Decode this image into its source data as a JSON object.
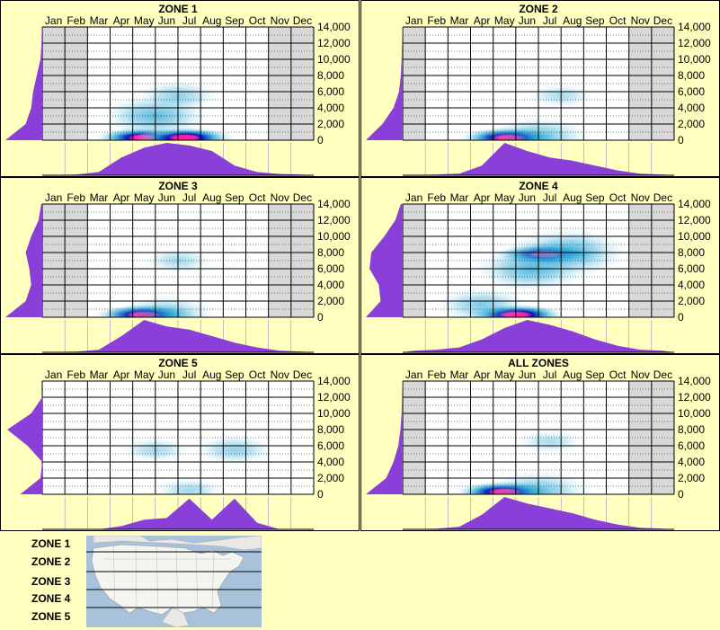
{
  "months": [
    "Jan",
    "Feb",
    "Mar",
    "Apr",
    "May",
    "Jun",
    "Jul",
    "Aug",
    "Sep",
    "Oct",
    "Nov",
    "Dec"
  ],
  "yticks": [
    "14,000",
    "12,000",
    "10,000",
    "8,000",
    "6,000",
    "4,000",
    "2,000",
    "0"
  ],
  "colors": {
    "background": "#ffffc0",
    "grid_bg": "#ffffff",
    "shade": "#d8d8d8",
    "marginal": "#8a3fd8",
    "density_low": "#cdeff8",
    "density_mid": "#2aa8d8",
    "density_high": "#0018c0",
    "density_peak": "#ff1ea0"
  },
  "chart_data": [
    {
      "type": "heatmap",
      "title": "ZONE 1",
      "x_categories": [
        "Jan",
        "Feb",
        "Mar",
        "Apr",
        "May",
        "Jun",
        "Jul",
        "Aug",
        "Sep",
        "Oct",
        "Nov",
        "Dec"
      ],
      "ylim": [
        0,
        14000
      ],
      "shaded_months": [
        "Jan",
        "Feb",
        "Nov",
        "Dec"
      ],
      "hotspots": [
        {
          "month": 5.0,
          "elevation": 300,
          "intensity": 1.0
        },
        {
          "month": 6.8,
          "elevation": 300,
          "intensity": 0.95
        },
        {
          "month": 5.5,
          "elevation": 3000,
          "intensity": 0.5
        },
        {
          "month": 6.5,
          "elevation": 5500,
          "intensity": 0.25
        }
      ],
      "month_marginal": [
        0.01,
        0.02,
        0.1,
        0.55,
        0.85,
        1.0,
        0.92,
        0.75,
        0.3,
        0.1,
        0.04,
        0.02
      ],
      "elevation_marginal": [
        1.0,
        0.45,
        0.3,
        0.25,
        0.15,
        0.05,
        0.02,
        0.01
      ]
    },
    {
      "type": "heatmap",
      "title": "ZONE 2",
      "x_categories": [
        "Jan",
        "Feb",
        "Mar",
        "Apr",
        "May",
        "Jun",
        "Jul",
        "Aug",
        "Sep",
        "Oct",
        "Nov",
        "Dec"
      ],
      "ylim": [
        0,
        14000
      ],
      "shaded_months": [
        "Jan",
        "Nov",
        "Dec"
      ],
      "hotspots": [
        {
          "month": 5.2,
          "elevation": 300,
          "intensity": 1.0
        },
        {
          "month": 6.5,
          "elevation": 400,
          "intensity": 0.45
        },
        {
          "month": 7.5,
          "elevation": 5500,
          "intensity": 0.12
        }
      ],
      "month_marginal": [
        0.01,
        0.02,
        0.05,
        0.3,
        1.0,
        0.75,
        0.55,
        0.45,
        0.3,
        0.15,
        0.05,
        0.02
      ],
      "elevation_marginal": [
        1.0,
        0.55,
        0.25,
        0.1,
        0.05,
        0.03,
        0.02,
        0.01
      ]
    },
    {
      "type": "heatmap",
      "title": "ZONE 3",
      "x_categories": [
        "Jan",
        "Feb",
        "Mar",
        "Apr",
        "May",
        "Jun",
        "Jul",
        "Aug",
        "Sep",
        "Oct",
        "Nov",
        "Dec"
      ],
      "ylim": [
        0,
        14000
      ],
      "shaded_months": [
        "Jan",
        "Feb",
        "Nov",
        "Dec"
      ],
      "hotspots": [
        {
          "month": 5.0,
          "elevation": 300,
          "intensity": 1.0
        },
        {
          "month": 6.0,
          "elevation": 400,
          "intensity": 0.4
        },
        {
          "month": 6.5,
          "elevation": 7000,
          "intensity": 0.15
        }
      ],
      "month_marginal": [
        0.01,
        0.02,
        0.08,
        0.5,
        1.0,
        0.8,
        0.7,
        0.5,
        0.3,
        0.15,
        0.05,
        0.02
      ],
      "elevation_marginal": [
        1.0,
        0.45,
        0.3,
        0.35,
        0.45,
        0.3,
        0.1,
        0.03
      ]
    },
    {
      "type": "heatmap",
      "title": "ZONE 4",
      "x_categories": [
        "Jan",
        "Feb",
        "Mar",
        "Apr",
        "May",
        "Jun",
        "Jul",
        "Aug",
        "Sep",
        "Oct",
        "Nov",
        "Dec"
      ],
      "ylim": [
        0,
        14000
      ],
      "shaded_months": [
        "Jan",
        "Nov",
        "Dec"
      ],
      "hotspots": [
        {
          "month": 5.5,
          "elevation": 300,
          "intensity": 1.0
        },
        {
          "month": 6.8,
          "elevation": 7800,
          "intensity": 1.0
        },
        {
          "month": 7.8,
          "elevation": 8000,
          "intensity": 0.6
        },
        {
          "month": 6.2,
          "elevation": 6000,
          "intensity": 0.55
        },
        {
          "month": 4.0,
          "elevation": 1500,
          "intensity": 0.35
        }
      ],
      "month_marginal": [
        0.05,
        0.08,
        0.15,
        0.4,
        0.75,
        1.0,
        0.85,
        0.65,
        0.4,
        0.2,
        0.08,
        0.05
      ],
      "elevation_marginal": [
        1.0,
        0.6,
        0.65,
        0.9,
        0.85,
        0.5,
        0.2,
        0.05
      ]
    },
    {
      "type": "heatmap",
      "title": "ZONE 5",
      "x_categories": [
        "Jan",
        "Feb",
        "Mar",
        "Apr",
        "May",
        "Jun",
        "Jul",
        "Aug",
        "Sep",
        "Oct",
        "Nov",
        "Dec"
      ],
      "ylim": [
        0,
        14000
      ],
      "shaded_months": [],
      "hotspots": [
        {
          "month": 5.5,
          "elevation": 5500,
          "intensity": 0.15
        },
        {
          "month": 9.0,
          "elevation": 5500,
          "intensity": 0.25
        },
        {
          "month": 7.0,
          "elevation": 500,
          "intensity": 0.15
        }
      ],
      "month_marginal": [
        0.0,
        0.0,
        0.0,
        0.1,
        0.3,
        0.35,
        0.95,
        0.3,
        0.95,
        0.2,
        0.0,
        0.0
      ],
      "elevation_marginal": [
        0.6,
        0.05,
        0.0,
        0.4,
        0.95,
        0.3,
        0.0,
        0.0
      ]
    },
    {
      "type": "heatmap",
      "title": "ALL ZONES",
      "x_categories": [
        "Jan",
        "Feb",
        "Mar",
        "Apr",
        "May",
        "Jun",
        "Jul",
        "Aug",
        "Sep",
        "Oct",
        "Nov",
        "Dec"
      ],
      "ylim": [
        0,
        14000
      ],
      "shaded_months": [
        "Jan",
        "Nov",
        "Dec"
      ],
      "hotspots": [
        {
          "month": 5.0,
          "elevation": 300,
          "intensity": 1.0
        },
        {
          "month": 6.5,
          "elevation": 400,
          "intensity": 0.45
        },
        {
          "month": 7.0,
          "elevation": 6500,
          "intensity": 0.12
        }
      ],
      "month_marginal": [
        0.01,
        0.02,
        0.08,
        0.45,
        1.0,
        0.8,
        0.65,
        0.5,
        0.3,
        0.15,
        0.05,
        0.02
      ],
      "elevation_marginal": [
        1.0,
        0.45,
        0.25,
        0.12,
        0.06,
        0.03,
        0.02,
        0.01
      ]
    }
  ],
  "legend": {
    "zones": [
      "ZONE 1",
      "ZONE 2",
      "ZONE 3",
      "ZONE 4",
      "ZONE 5"
    ]
  }
}
